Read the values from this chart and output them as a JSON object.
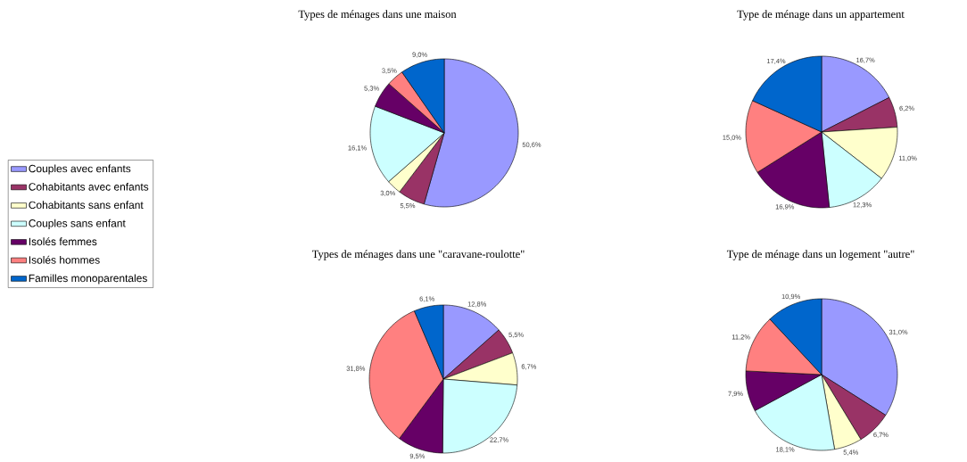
{
  "chart_data": [
    {
      "type": "pie",
      "title": "Types de ménages dans une maison",
      "categories": [
        "Couples avec enfants",
        "Cohabitants avec enfants",
        "Cohabitants sans enfant",
        "Couples sans enfant",
        "Isolés femmes",
        "Isolés hommes",
        "Familles monoparentales"
      ],
      "values": [
        50.6,
        5.5,
        3.0,
        16.1,
        5.3,
        3.5,
        9.0
      ],
      "value_labels": [
        "50,6%",
        "5,5%",
        "3,0%",
        "16,1%",
        "5,3%",
        "3,5%",
        "9,0%"
      ],
      "colors": [
        "#9999ff",
        "#993366",
        "#ffffcc",
        "#ccffff",
        "#660066",
        "#ff8080",
        "#0066cc"
      ],
      "legend": "left"
    },
    {
      "type": "pie",
      "title": "Type de ménage dans un appartement",
      "categories": [
        null,
        null,
        null,
        null,
        null,
        null,
        null
      ],
      "values": [
        16.7,
        6.2,
        11.0,
        12.3,
        16.9,
        15.0,
        17.4
      ],
      "value_labels": [
        "16,7%",
        "6,2%",
        "11,0%",
        "12,3%",
        "16,9%",
        "15,0%",
        "17,4%"
      ],
      "colors": [
        "#9999ff",
        "#993366",
        "#ffffcc",
        "#ccffff",
        "#660066",
        "#ff8080",
        "#0066cc"
      ]
    },
    {
      "type": "pie",
      "title": "Types de ménages dans une \"caravane-roulotte\"",
      "categories": [
        null,
        null,
        null,
        null,
        null,
        null,
        null
      ],
      "values": [
        12.8,
        5.5,
        6.7,
        22.7,
        9.5,
        31.8,
        6.1
      ],
      "value_labels": [
        "12,8%",
        "5,5%",
        "6,7%",
        "22,7%",
        "9,5%",
        "31,8%",
        "6,1%"
      ],
      "colors": [
        "#9999ff",
        "#993366",
        "#ffffcc",
        "#ccffff",
        "#660066",
        "#ff8080",
        "#0066cc"
      ]
    },
    {
      "type": "pie",
      "title": "Type de ménage dans un logement \"autre\"",
      "categories": [
        null,
        null,
        null,
        null,
        null,
        null,
        null
      ],
      "values": [
        31.0,
        6.7,
        5.4,
        18.1,
        7.9,
        11.2,
        10.9
      ],
      "value_labels": [
        "31,0%",
        "6,7%",
        "5,4%",
        "18,1%",
        "7,9%",
        "11,2%",
        "10,9%"
      ],
      "colors": [
        "#9999ff",
        "#993366",
        "#ffffcc",
        "#ccffff",
        "#660066",
        "#ff8080",
        "#0066cc"
      ]
    }
  ]
}
